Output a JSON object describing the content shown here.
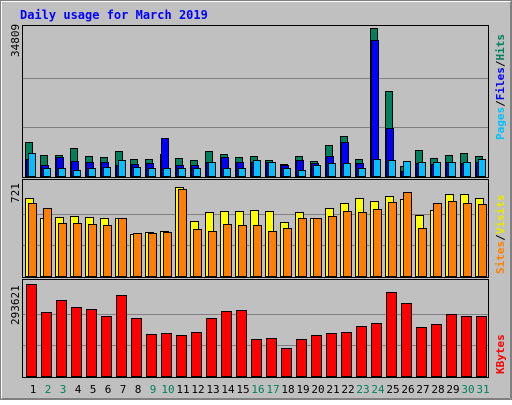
{
  "title": "Daily usage for March 2019",
  "colors": {
    "background": "#c0c0c0",
    "title": "#0000ff",
    "hits": "#00805c",
    "files": "#0000ff",
    "pages": "#00c0ff",
    "visits": "#ffff00",
    "sites": "#ff8000",
    "kbytes": "#ff0000",
    "weekday_label": "#000000",
    "weekend_label": "#00805c"
  },
  "chart_data": [
    {
      "type": "bar",
      "panel": "hits-files-pages",
      "ymax_label": "34809",
      "ylim": [
        0,
        34809
      ],
      "right_labels": [
        "Pages",
        "Files",
        "Hits"
      ],
      "categories": [
        "1",
        "2",
        "3",
        "4",
        "5",
        "6",
        "7",
        "8",
        "9",
        "10",
        "11",
        "12",
        "13",
        "14",
        "15",
        "16",
        "17",
        "18",
        "19",
        "20",
        "21",
        "22",
        "23",
        "24",
        "25",
        "26",
        "27",
        "28",
        "29",
        "30",
        "31"
      ],
      "weekend": [
        false,
        true,
        true,
        false,
        false,
        false,
        false,
        false,
        true,
        true,
        false,
        false,
        false,
        false,
        false,
        true,
        true,
        false,
        false,
        false,
        false,
        false,
        true,
        true,
        false,
        false,
        false,
        false,
        false,
        true,
        true
      ],
      "series": [
        {
          "name": "Hits",
          "values": [
            7900,
            4900,
            4900,
            6600,
            4700,
            4500,
            5800,
            4000,
            4000,
            5100,
            4300,
            3800,
            5800,
            5100,
            4400,
            4600,
            3800,
            2800,
            4600,
            3500,
            7400,
            9300,
            3900,
            34800,
            20100,
            2400,
            6100,
            4200,
            4900,
            5400,
            4600
          ]
        },
        {
          "name": "Files",
          "values": [
            4100,
            2700,
            4500,
            3500,
            3200,
            3200,
            2600,
            2900,
            3100,
            8900,
            2700,
            2700,
            3400,
            4400,
            3200,
            3200,
            3300,
            2700,
            3700,
            3000,
            4700,
            8000,
            3100,
            32000,
            11200,
            1200,
            3000,
            2800,
            3300,
            3100,
            3300
          ]
        },
        {
          "name": "Pages",
          "values": [
            5300,
            1800,
            1800,
            1300,
            1900,
            2000,
            3700,
            2000,
            1900,
            1800,
            1900,
            1800,
            3200,
            1900,
            1900,
            3700,
            3200,
            1800,
            1300,
            2700,
            3000,
            3000,
            1900,
            3900,
            3700,
            3500,
            3200,
            3200,
            3200,
            3200,
            3900
          ]
        }
      ]
    },
    {
      "type": "bar",
      "panel": "visits-sites",
      "ymax_label": "721",
      "ylim": [
        0,
        721
      ],
      "right_labels": [
        "Sites",
        "Visits"
      ],
      "series": [
        {
          "name": "Visits",
          "values": [
            613,
            455,
            461,
            470,
            466,
            457,
            458,
            330,
            341,
            349,
            695,
            430,
            502,
            512,
            510,
            520,
            507,
            420,
            504,
            451,
            530,
            576,
            613,
            589,
            630,
            601,
            480,
            520,
            640,
            640,
            612
          ]
        },
        {
          "name": "Sites",
          "values": [
            574,
            533,
            412,
            413,
            409,
            401,
            456,
            337,
            340,
            341,
            678,
            372,
            352,
            411,
            398,
            403,
            353,
            376,
            451,
            454,
            472,
            510,
            503,
            523,
            578,
            660,
            374,
            571,
            588,
            575,
            562
          ]
        }
      ]
    },
    {
      "type": "bar",
      "panel": "kbytes",
      "ymax_label": "293621",
      "ylim": [
        0,
        293621
      ],
      "right_labels": [
        "KBytes"
      ],
      "series": [
        {
          "name": "KBytes",
          "values": [
            294000,
            203000,
            244000,
            220000,
            214000,
            190000,
            259000,
            186000,
            134000,
            137000,
            131000,
            141000,
            186000,
            209000,
            212000,
            119000,
            121000,
            89000,
            119000,
            132000,
            136000,
            140000,
            159000,
            168000,
            269000,
            233000,
            157000,
            165000,
            197000,
            192000,
            190000
          ]
        }
      ]
    }
  ]
}
